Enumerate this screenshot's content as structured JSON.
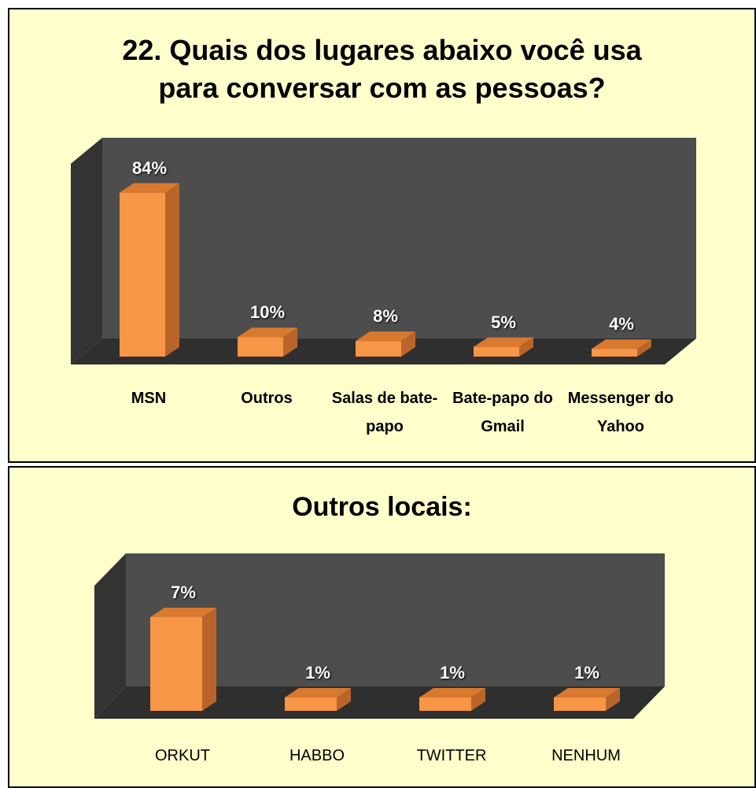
{
  "chart_data": [
    {
      "type": "bar3d",
      "title": "22. Quais dos lugares abaixo você usa para conversar com as pessoas?",
      "categories": [
        "MSN",
        "Outros",
        "Salas de bate-papo",
        "Bate-papo do Gmail",
        "Messenger do Yahoo"
      ],
      "values": [
        84,
        10,
        8,
        5,
        4
      ],
      "value_labels": [
        "84%",
        "10%",
        "8%",
        "5%",
        "4%"
      ],
      "color": "#f79646",
      "ylim": [
        0,
        100
      ]
    },
    {
      "type": "bar3d",
      "title": "Outros locais:",
      "categories": [
        "ORKUT",
        "HABBO",
        "TWITTER",
        "NENHUM"
      ],
      "values": [
        7,
        1,
        1,
        1
      ],
      "value_labels": [
        "7%",
        "1%",
        "1%",
        "1%"
      ],
      "color": "#f79646",
      "ylim": [
        0,
        10
      ]
    }
  ]
}
